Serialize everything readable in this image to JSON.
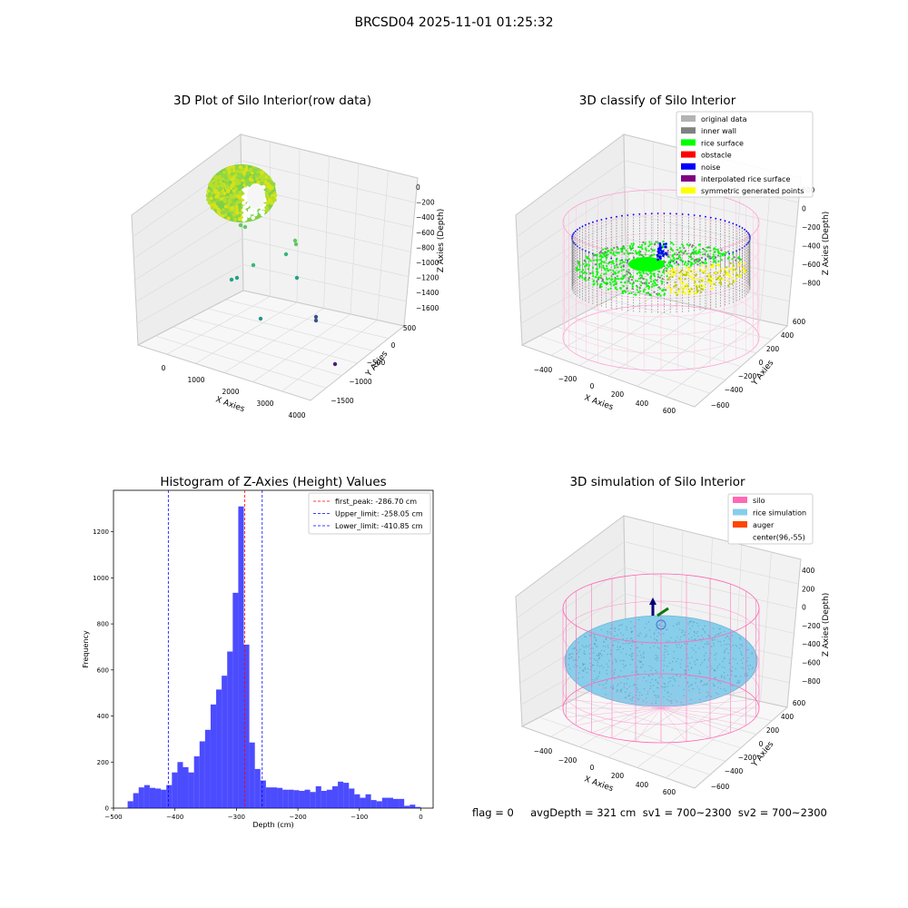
{
  "suptitle": "BRCSD04 2025-11-01 01:25:32",
  "status_line": "flag = 0     avgDepth = 321 cm  sv1 = 700~2300  sv2 = 700~2300",
  "chart_data": [
    {
      "type": "scatter",
      "title": "3D Plot of Silo Interior(row data)",
      "xlabel": "X Axies",
      "ylabel": "Y Axies",
      "zlabel": "Z Axies (Depth)",
      "x_ticks": [
        "0",
        "1000",
        "2000",
        "3000",
        "4000"
      ],
      "y_ticks": [
        "500",
        "0",
        "−500",
        "−1000",
        "−1500"
      ],
      "z_ticks": [
        "0",
        "−200",
        "−400",
        "−600",
        "−800",
        "−1000",
        "−1200",
        "−1400",
        "−1600"
      ],
      "colormap": "viridis"
    },
    {
      "type": "scatter",
      "title": "3D classify of Silo Interior",
      "xlabel": "X Axies",
      "ylabel": "Y Axies",
      "zlabel": "Z Axies (Depth)",
      "x_ticks": [
        "−400",
        "−200",
        "0",
        "200",
        "400",
        "600"
      ],
      "y_ticks": [
        "600",
        "400",
        "200",
        "0",
        "−200",
        "−400",
        "−600"
      ],
      "z_ticks": [
        "200",
        "0",
        "−200",
        "−400",
        "−600",
        "−800"
      ],
      "legend_position": "top-right",
      "legend": [
        {
          "label": "original data",
          "color": "#b3b3b3"
        },
        {
          "label": "inner wall",
          "color": "#808080"
        },
        {
          "label": "rice surface",
          "color": "#00ff00"
        },
        {
          "label": "obstacle",
          "color": "#ff0000"
        },
        {
          "label": "noise",
          "color": "#0000ff"
        },
        {
          "label": "interpolated rice surface",
          "color": "#800080"
        },
        {
          "label": "symmetric generated points",
          "color": "#ffff00"
        }
      ]
    },
    {
      "type": "bar",
      "title": "Histogram of Z-Axies (Height) Values",
      "xlabel": "Depth (cm)",
      "ylabel": "Frequency",
      "xlim": [
        -500,
        20
      ],
      "ylim": [
        0,
        1380
      ],
      "x_ticks": [
        -500,
        -400,
        -300,
        -200,
        -100,
        0
      ],
      "x_tick_labels": [
        "−500",
        "−400",
        "−300",
        "−200",
        "−100",
        "0"
      ],
      "y_ticks": [
        0,
        200,
        400,
        600,
        800,
        1000,
        1200
      ],
      "bar_color": "#0000ff",
      "bin_edges": [
        -477,
        -468,
        -459,
        -450,
        -441,
        -432,
        -423,
        -414,
        -405,
        -396,
        -387,
        -378,
        -369,
        -360,
        -351,
        -342,
        -333,
        -324,
        -315,
        -306,
        -297,
        -288,
        -279,
        -270,
        -261,
        -252,
        -243,
        -234,
        -225,
        -216,
        -207,
        -198,
        -189,
        -180,
        -171,
        -162,
        -153,
        -144,
        -135,
        -126,
        -117,
        -108,
        -99,
        -90,
        -81,
        -72,
        -63,
        -54,
        -45,
        -36,
        -27,
        -18,
        -9,
        0
      ],
      "values": [
        30,
        65,
        90,
        100,
        88,
        85,
        80,
        100,
        155,
        200,
        178,
        155,
        225,
        290,
        340,
        450,
        515,
        575,
        680,
        935,
        1310,
        710,
        285,
        170,
        120,
        90,
        90,
        88,
        80,
        80,
        78,
        75,
        80,
        70,
        95,
        75,
        80,
        95,
        115,
        110,
        85,
        60,
        45,
        60,
        35,
        30,
        45,
        45,
        40,
        40,
        10,
        15,
        5
      ],
      "vlines": [
        {
          "label": "first_peak: -286.70 cm",
          "x": -286.7,
          "color": "#ff0000"
        },
        {
          "label": "Upper_limit: -258.05 cm",
          "x": -258.05,
          "color": "#0000ff"
        },
        {
          "label": "Lower_limit: -410.85 cm",
          "x": -410.85,
          "color": "#0000ff"
        }
      ],
      "legend_position": "top-right"
    },
    {
      "type": "scatter",
      "title": "3D simulation of Silo Interior",
      "xlabel": "X Axies",
      "ylabel": "Y Axies",
      "zlabel": "Z Axies (Depth)",
      "x_ticks": [
        "−400",
        "−200",
        "0",
        "200",
        "400",
        "600"
      ],
      "y_ticks": [
        "600",
        "400",
        "200",
        "0",
        "−200",
        "−400",
        "−600"
      ],
      "z_ticks": [
        "400",
        "200",
        "0",
        "−200",
        "−400",
        "−600",
        "−800"
      ],
      "legend_position": "top-right",
      "legend": [
        {
          "label": "silo",
          "color": "#ff69b4"
        },
        {
          "label": "rice simulation",
          "color": "#87ceeb"
        },
        {
          "label": "auger",
          "color": "#ff4500"
        },
        {
          "label": "center(96,-55)",
          "color": ""
        }
      ]
    }
  ]
}
